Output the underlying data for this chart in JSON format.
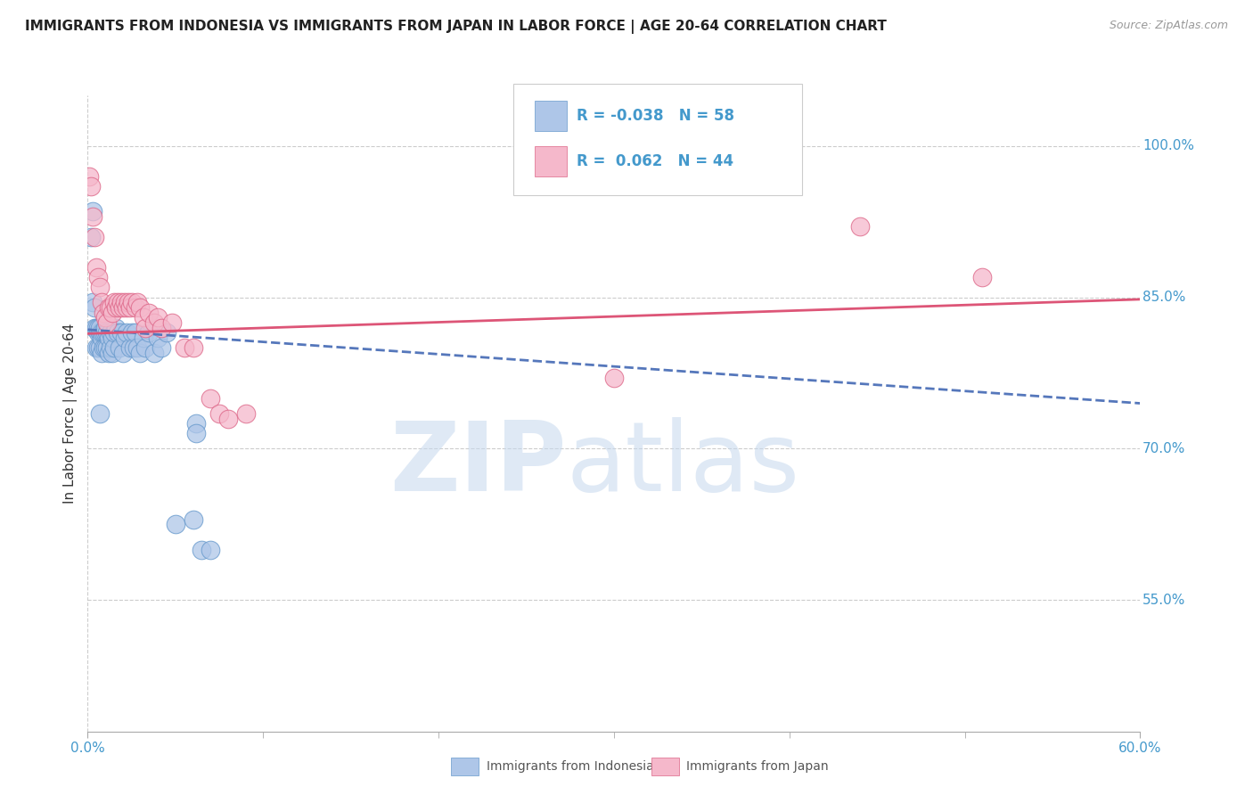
{
  "title": "IMMIGRANTS FROM INDONESIA VS IMMIGRANTS FROM JAPAN IN LABOR FORCE | AGE 20-64 CORRELATION CHART",
  "source": "Source: ZipAtlas.com",
  "ylabel": "In Labor Force | Age 20-64",
  "xlim": [
    0.0,
    0.6
  ],
  "ylim": [
    0.42,
    1.05
  ],
  "xtick_positions": [
    0.0,
    0.6
  ],
  "xticklabels": [
    "0.0%",
    "60.0%"
  ],
  "ytick_positions": [
    0.55,
    0.7,
    0.85,
    1.0
  ],
  "yticklabels": [
    "55.0%",
    "70.0%",
    "85.0%",
    "100.0%"
  ],
  "legend_labels": [
    "Immigrants from Indonesia",
    "Immigrants from Japan"
  ],
  "legend_R": [
    -0.038,
    0.062
  ],
  "legend_N": [
    58,
    44
  ],
  "indonesia_color": "#aec6e8",
  "japan_color": "#f5b8cb",
  "indonesia_edge_color": "#6699cc",
  "japan_edge_color": "#dd6688",
  "indonesia_line_color": "#5577bb",
  "japan_line_color": "#dd5577",
  "background_color": "#ffffff",
  "grid_color": "#cccccc",
  "tick_color": "#4499cc",
  "title_color": "#222222",
  "source_color": "#999999",
  "ylabel_color": "#333333",
  "watermark_zip_color": "#c5d8ee",
  "watermark_atlas_color": "#c5d8ee",
  "indo_x": [
    0.002,
    0.003,
    0.004,
    0.004,
    0.005,
    0.005,
    0.006,
    0.006,
    0.006,
    0.007,
    0.007,
    0.007,
    0.008,
    0.008,
    0.008,
    0.009,
    0.009,
    0.01,
    0.01,
    0.01,
    0.011,
    0.011,
    0.012,
    0.012,
    0.013,
    0.013,
    0.014,
    0.014,
    0.015,
    0.015,
    0.016,
    0.017,
    0.018,
    0.019,
    0.02,
    0.021,
    0.022,
    0.024,
    0.025,
    0.026,
    0.027,
    0.028,
    0.03,
    0.032,
    0.033,
    0.035,
    0.038,
    0.04,
    0.042,
    0.045,
    0.003,
    0.007,
    0.05,
    0.06,
    0.065,
    0.07,
    0.062,
    0.062
  ],
  "indo_y": [
    0.91,
    0.845,
    0.82,
    0.84,
    0.8,
    0.82,
    0.8,
    0.815,
    0.82,
    0.8,
    0.815,
    0.82,
    0.795,
    0.81,
    0.815,
    0.8,
    0.815,
    0.8,
    0.815,
    0.82,
    0.815,
    0.8,
    0.795,
    0.81,
    0.8,
    0.815,
    0.795,
    0.81,
    0.8,
    0.815,
    0.82,
    0.815,
    0.8,
    0.815,
    0.795,
    0.81,
    0.815,
    0.8,
    0.815,
    0.8,
    0.815,
    0.8,
    0.795,
    0.81,
    0.8,
    0.815,
    0.795,
    0.81,
    0.8,
    0.815,
    0.935,
    0.735,
    0.625,
    0.63,
    0.6,
    0.6,
    0.725,
    0.715
  ],
  "japan_x": [
    0.001,
    0.002,
    0.003,
    0.004,
    0.005,
    0.006,
    0.007,
    0.008,
    0.009,
    0.01,
    0.011,
    0.012,
    0.013,
    0.014,
    0.015,
    0.016,
    0.017,
    0.018,
    0.019,
    0.02,
    0.021,
    0.022,
    0.023,
    0.024,
    0.025,
    0.027,
    0.028,
    0.03,
    0.032,
    0.033,
    0.035,
    0.038,
    0.04,
    0.042,
    0.048,
    0.055,
    0.06,
    0.3,
    0.07,
    0.075,
    0.08,
    0.09,
    0.44,
    0.51
  ],
  "japan_y": [
    0.97,
    0.96,
    0.93,
    0.91,
    0.88,
    0.87,
    0.86,
    0.845,
    0.835,
    0.83,
    0.825,
    0.84,
    0.84,
    0.835,
    0.845,
    0.84,
    0.845,
    0.84,
    0.845,
    0.84,
    0.845,
    0.84,
    0.845,
    0.84,
    0.845,
    0.84,
    0.845,
    0.84,
    0.83,
    0.82,
    0.835,
    0.825,
    0.83,
    0.82,
    0.825,
    0.8,
    0.8,
    0.77,
    0.75,
    0.735,
    0.73,
    0.735,
    0.92,
    0.87
  ],
  "indo_line_x0": 0.0,
  "indo_line_x1": 0.6,
  "indo_line_y0": 0.818,
  "indo_line_y1": 0.745,
  "japan_line_x0": 0.0,
  "japan_line_x1": 0.6,
  "japan_line_y0": 0.814,
  "japan_line_y1": 0.848
}
